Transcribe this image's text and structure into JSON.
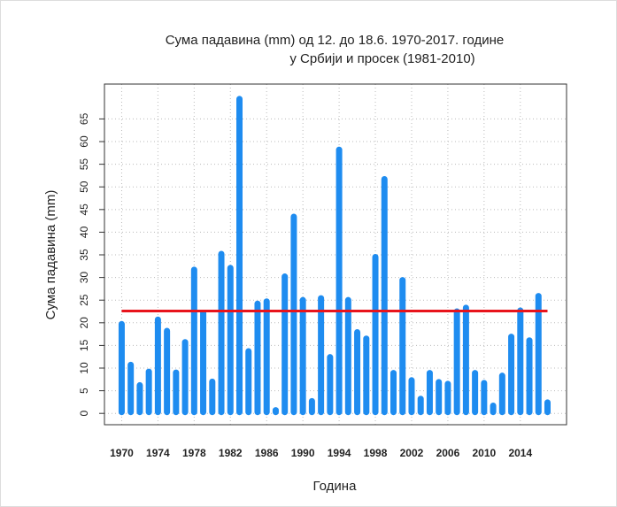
{
  "chart_data": {
    "type": "bar",
    "title": [
      "Сума падавина (mm)   од 12. до 18.6. 1970-2017. године",
      "у Србији и просек (1981-2010)"
    ],
    "y_label": "Сума падавина (mm)",
    "x_label": "Година",
    "x": [
      1970,
      1971,
      1972,
      1973,
      1974,
      1975,
      1976,
      1977,
      1978,
      1979,
      1980,
      1981,
      1982,
      1983,
      1984,
      1985,
      1986,
      1987,
      1988,
      1989,
      1990,
      1991,
      1992,
      1993,
      1994,
      1995,
      1996,
      1997,
      1998,
      1999,
      2000,
      2001,
      2002,
      2003,
      2004,
      2005,
      2006,
      2007,
      2008,
      2009,
      2010,
      2011,
      2012,
      2013,
      2014,
      2015,
      2016,
      2017
    ],
    "values": [
      20,
      11,
      6.5,
      9.5,
      21,
      18.5,
      9.3,
      16,
      32,
      22.5,
      7.3,
      35.5,
      32.4,
      69.7,
      14,
      24.5,
      25,
      1,
      30.5,
      43.7,
      25.3,
      3,
      25.7,
      12.7,
      58.5,
      25.3,
      18.2,
      16.8,
      34.8,
      52,
      9.2,
      29.7,
      7.6,
      3.5,
      9.2,
      7.2,
      6.8,
      22.8,
      23.6,
      9.2,
      7,
      2,
      8.6,
      17.2,
      23,
      16.4,
      26.2,
      2.7
    ],
    "color": "#1e8cf0",
    "mean": 22.6,
    "mean_color": "#e8141c",
    "xlim": [
      1968.1,
      2019.1
    ],
    "xticks": [
      1970,
      1974,
      1978,
      1982,
      1986,
      1990,
      1994,
      1998,
      2002,
      2006,
      2010,
      2014
    ],
    "ylim": [
      -2.5,
      72.7
    ],
    "yticks": [
      0,
      5,
      10,
      15,
      20,
      25,
      30,
      35,
      40,
      45,
      50,
      55,
      60,
      65
    ],
    "grid": true
  }
}
